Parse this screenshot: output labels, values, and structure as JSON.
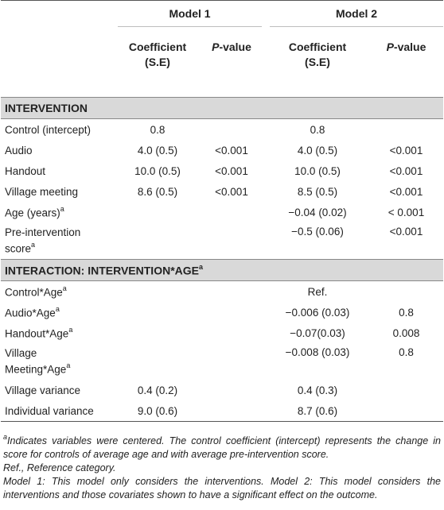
{
  "header": {
    "model1": "Model 1",
    "model2": "Model 2",
    "coef_line1": "Coefficient",
    "coef_line2": "(S.E)",
    "pvalue_italic": "P",
    "pvalue_rest": "-value"
  },
  "sections": {
    "intervention": "INTERVENTION",
    "interaction": "INTERACTION: INTERVENTION*AGE",
    "interaction_sup": "a"
  },
  "rows": [
    {
      "label": "Control (intercept)",
      "sup": "",
      "m1_coef": "0.8",
      "m1_p": "",
      "m2_coef": "0.8",
      "m2_p": ""
    },
    {
      "label": "Audio",
      "sup": "",
      "m1_coef": "4.0 (0.5)",
      "m1_p": "<0.001",
      "m2_coef": "4.0 (0.5)",
      "m2_p": "<0.001"
    },
    {
      "label": "Handout",
      "sup": "",
      "m1_coef": "10.0 (0.5)",
      "m1_p": "<0.001",
      "m2_coef": "10.0 (0.5)",
      "m2_p": "<0.001"
    },
    {
      "label": "Village meeting",
      "sup": "",
      "m1_coef": "8.6 (0.5)",
      "m1_p": "<0.001",
      "m2_coef": "8.5 (0.5)",
      "m2_p": "<0.001"
    },
    {
      "label": "Age (years)",
      "sup": "a",
      "m1_coef": "",
      "m1_p": "",
      "m2_coef": "−0.04 (0.02)",
      "m2_p": "< 0.001"
    },
    {
      "label_line1": "Pre-intervention",
      "label_line2": "score",
      "sup": "a",
      "m1_coef": "",
      "m1_p": "",
      "m2_coef": "−0.5 (0.06)",
      "m2_p": "<0.001"
    },
    {
      "label": "Control*Age",
      "sup": "a",
      "m1_coef": "",
      "m1_p": "",
      "m2_coef": "Ref.",
      "m2_p": ""
    },
    {
      "label": "Audio*Age",
      "sup": "a",
      "m1_coef": "",
      "m1_p": "",
      "m2_coef": "−0.006 (0.03)",
      "m2_p": "0.8"
    },
    {
      "label": "Handout*Age",
      "sup": "a",
      "m1_coef": "",
      "m1_p": "",
      "m2_coef": "−0.07(0.03)",
      "m2_p": "0.008"
    },
    {
      "label_line1": "Village",
      "label_line2": "Meeting*Age",
      "sup": "a",
      "m1_coef": "",
      "m1_p": "",
      "m2_coef": "−0.008 (0.03)",
      "m2_p": "0.8"
    },
    {
      "label": "Village variance",
      "sup": "",
      "m1_coef": "0.4 (0.2)",
      "m1_p": "",
      "m2_coef": "0.4 (0.3)",
      "m2_p": ""
    },
    {
      "label": "Individual variance",
      "sup": "",
      "m1_coef": "9.0 (0.6)",
      "m1_p": "",
      "m2_coef": "8.7 (0.6)",
      "m2_p": ""
    }
  ],
  "notes": {
    "sup": "a",
    "note1": "Indicates variables were centered. The control coefficient (intercept) represents the change in score for controls of average age and with average pre-intervention score.",
    "note2": "Ref., Reference category.",
    "note3": "Model 1: This model only considers the interventions. Model 2: This model considers the interventions and those covariates shown to have a significant effect on the outcome."
  }
}
